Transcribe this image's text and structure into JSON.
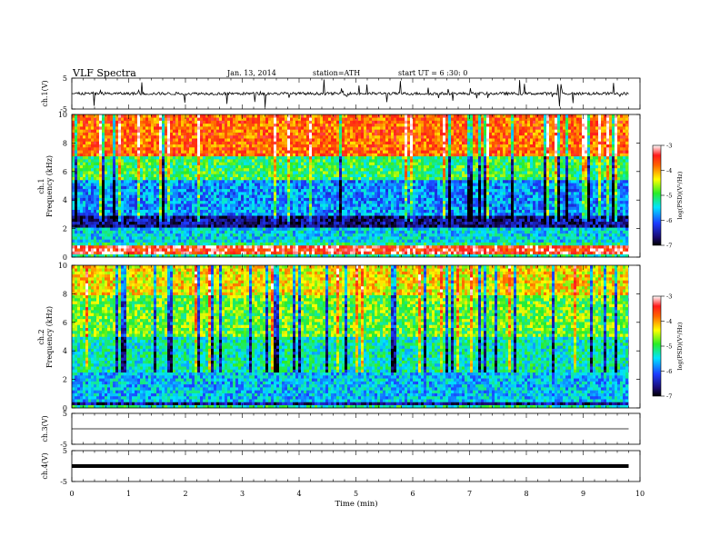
{
  "header": {
    "title": "VLF  Spectra",
    "date": "Jan. 13, 2014",
    "station": "station=ATH",
    "start": "start  UT  =   6  :30: 0"
  },
  "chart_data": [
    {
      "type": "line",
      "panel": "ch1-waveform",
      "ylabel": "ch.1(V)",
      "ylim": [
        -5,
        5
      ],
      "yticks": [
        "5",
        "-5"
      ],
      "baseline": 0,
      "noise": "continuous waveform with frequent spikes to about ±5 V",
      "x_range": [
        0,
        9.8
      ]
    },
    {
      "type": "heatmap",
      "panel": "ch1-spectrogram",
      "ylabel_top": "ch.1",
      "ylabel": "Frequency  (kHz)",
      "ylim": [
        0,
        10
      ],
      "yticks": [
        "0",
        "2",
        "4",
        "6",
        "8",
        "10"
      ],
      "x_range": [
        0,
        9.8
      ],
      "colorbar": {
        "label": "log(PSD)(V²/Hz)",
        "range": [
          -7,
          -3
        ],
        "ticks": [
          "-3",
          "-4",
          "-5",
          "-6",
          "-7"
        ]
      },
      "description_levels": [
        {
          "freq_khz": [
            0.3,
            0.8
          ],
          "log_psd": -3.4
        },
        {
          "freq_khz": [
            1.0,
            2.0
          ],
          "log_psd": -5.5
        },
        {
          "freq_khz": [
            2.0,
            3.0
          ],
          "log_psd": -6.6
        },
        {
          "freq_khz": [
            3.0,
            5.5
          ],
          "log_psd": -5.8
        },
        {
          "freq_khz": [
            5.5,
            7.0
          ],
          "log_psd": -5.0
        },
        {
          "freq_khz": [
            7.0,
            10.0
          ],
          "log_psd": -3.8
        }
      ]
    },
    {
      "type": "heatmap",
      "panel": "ch2-spectrogram",
      "ylabel_top": "ch.2",
      "ylabel": "Frequency  (kHz)",
      "ylim": [
        0,
        10
      ],
      "yticks": [
        "0",
        "2",
        "4",
        "6",
        "8",
        "10"
      ],
      "x_range": [
        0,
        9.8
      ],
      "colorbar": {
        "label": "log(PSD)(V²/Hz)",
        "range": [
          -7,
          -3
        ],
        "ticks": [
          "-3",
          "-4",
          "-5",
          "-6",
          "-7"
        ]
      },
      "description_levels": [
        {
          "freq_khz": [
            0.2,
            0.5
          ],
          "log_psd": -6.5
        },
        {
          "freq_khz": [
            0.5,
            2.5
          ],
          "log_psd": -5.6
        },
        {
          "freq_khz": [
            2.5,
            5.0
          ],
          "log_psd": -5.3
        },
        {
          "freq_khz": [
            5.0,
            8.0
          ],
          "log_psd": -4.8
        },
        {
          "freq_khz": [
            8.0,
            10.0
          ],
          "log_psd": -4.3
        }
      ]
    },
    {
      "type": "line",
      "panel": "ch3-waveform",
      "ylabel": "ch.3(V)",
      "ylim": [
        -5,
        5
      ],
      "yticks": [
        "5",
        "-5"
      ],
      "baseline": 0,
      "x_range": [
        0,
        9.8
      ]
    },
    {
      "type": "line",
      "panel": "ch4-waveform",
      "ylabel": "ch.4(V)",
      "ylim": [
        -5,
        5
      ],
      "yticks": [
        "5",
        "-5"
      ],
      "baseline": 0,
      "x_range": [
        0,
        9.8
      ]
    }
  ],
  "xaxis": {
    "label": "Time  (min)",
    "range": [
      0,
      10
    ],
    "ticks": [
      "0",
      "1",
      "2",
      "3",
      "4",
      "5",
      "6",
      "7",
      "8",
      "9",
      "10"
    ]
  }
}
